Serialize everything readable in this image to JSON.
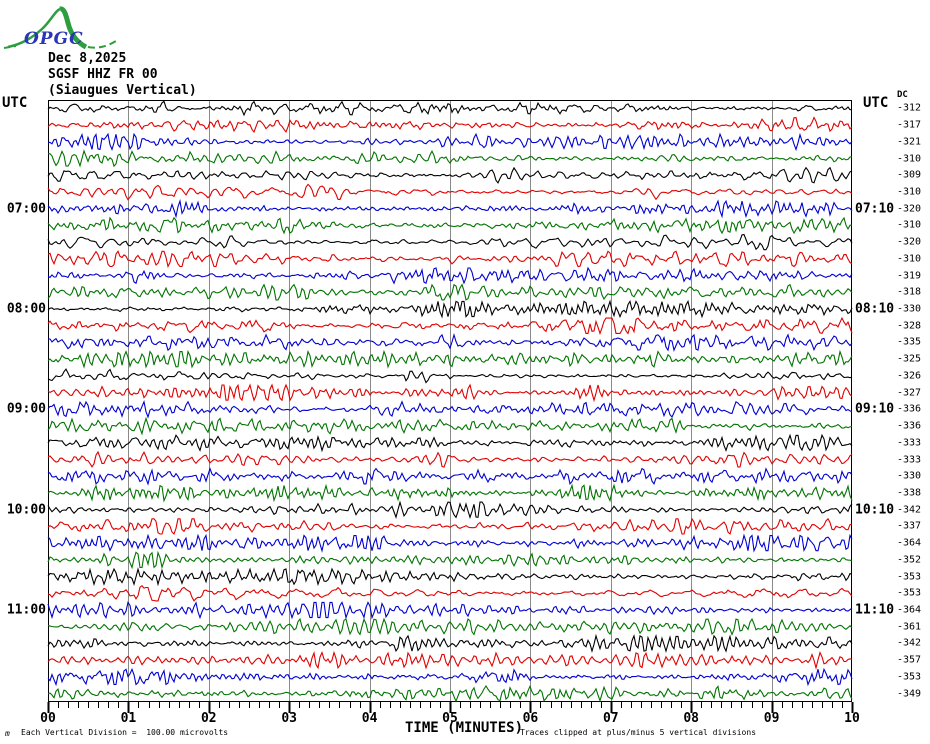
{
  "page": {
    "logo_text": "OPGC",
    "header": {
      "date": "Dec 8,2025",
      "station": "SGSF HHZ FR 00",
      "location": "(Siaugues Vertical)"
    },
    "left_axis_title": "UTC",
    "right_axis_title": "UTC",
    "dc_header": "DC",
    "footer": {
      "marker": "m",
      "scale_note": "Each Vertical Division =  100.00 microvolts",
      "clip_note": "Traces clipped at plus/minus 5 vertical divisions"
    }
  },
  "chart_data": {
    "type": "line",
    "subtype": "helicorder-seismogram",
    "title": "SGSF HHZ FR 00 (Siaugues Vertical) Dec 8,2025",
    "xlabel": "TIME (MINUTES)",
    "x_ticks": [
      "00",
      "01",
      "02",
      "03",
      "04",
      "05",
      "06",
      "07",
      "08",
      "09",
      "10"
    ],
    "xlim": [
      0,
      10
    ],
    "minor_ticks_per_minute": 8,
    "grid": true,
    "rows": 36,
    "minutes_per_row": 10,
    "row_color_cycle": [
      "#000000",
      "#e00000",
      "#0000d0",
      "#007400"
    ],
    "grid_color": "#8a8a8a",
    "left_time_labels": [
      {
        "row": 6,
        "label": "07:00"
      },
      {
        "row": 12,
        "label": "08:00"
      },
      {
        "row": 18,
        "label": "09:00"
      },
      {
        "row": 24,
        "label": "10:00"
      },
      {
        "row": 30,
        "label": "11:00"
      }
    ],
    "right_time_labels": [
      {
        "row": 6,
        "label": "07:10"
      },
      {
        "row": 12,
        "label": "08:10"
      },
      {
        "row": 18,
        "label": "09:10"
      },
      {
        "row": 24,
        "label": "10:10"
      },
      {
        "row": 30,
        "label": "11:10"
      }
    ],
    "dc_offsets": [
      "-312",
      "-317",
      "-321",
      "-310",
      "-309",
      "-310",
      "-320",
      "-310",
      "-320",
      "-310",
      "-319",
      "-318",
      "-330",
      "-328",
      "-335",
      "-325",
      "-326",
      "-327",
      "-336",
      "-336",
      "-333",
      "-333",
      "-330",
      "-338",
      "-342",
      "-337",
      "-364",
      "-352",
      "-353",
      "-353",
      "-364",
      "-361",
      "-342",
      "-357",
      "-353",
      "-349"
    ],
    "scale_note": "Each Vertical Division = 100.00 microvolts",
    "clipping_note": "Traces clipped at plus/minus 5 vertical divisions",
    "waveform_note": "continuous background seismic noise traces; black/red/blue/green repeating per 10-minute row"
  }
}
